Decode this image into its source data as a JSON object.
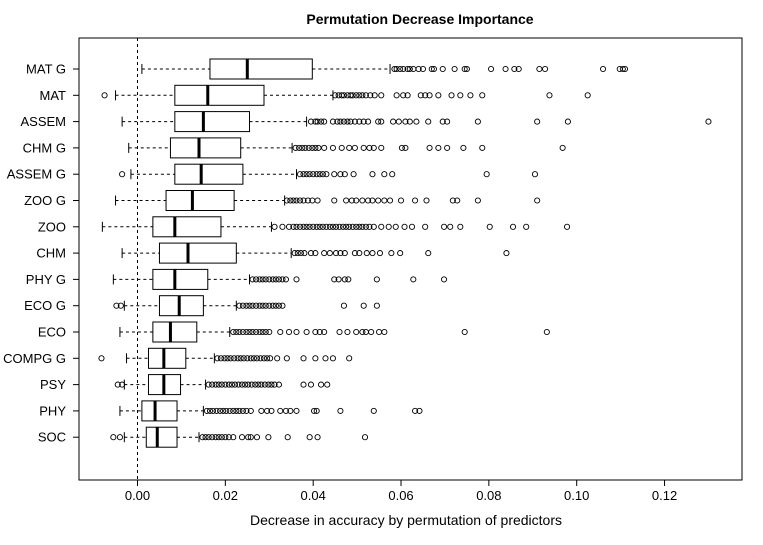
{
  "chart_data": {
    "type": "boxplot",
    "orientation": "horizontal",
    "title": "Permutation Decrease Importance",
    "xlabel": "Decrease in accuracy by permutation of predictors",
    "ylabel": "",
    "xlim": [
      -0.014,
      0.132
    ],
    "x_ticks": [
      "0.00",
      "0.02",
      "0.04",
      "0.06",
      "0.08",
      "0.10",
      "0.12"
    ],
    "x_tick_values": [
      0,
      0.02,
      0.04,
      0.06,
      0.08,
      0.1,
      0.12
    ],
    "reference_line": 0.0,
    "series": [
      {
        "name": "MAT G",
        "whisker_low": 0.001,
        "q1": 0.0165,
        "median": 0.025,
        "q3": 0.0398,
        "whisker_high": 0.0575,
        "outliers": [
          0.0585,
          0.059,
          0.0598,
          0.0605,
          0.0615,
          0.062,
          0.0628,
          0.064,
          0.065,
          0.067,
          0.0675,
          0.0695,
          0.0722,
          0.0745,
          0.075,
          0.0805,
          0.0838,
          0.0858,
          0.0868,
          0.0915,
          0.0928,
          0.106,
          0.1098,
          0.1105,
          0.111
        ]
      },
      {
        "name": "MAT",
        "whisker_low": -0.005,
        "q1": 0.0085,
        "median": 0.016,
        "q3": 0.0288,
        "whisker_high": 0.0445,
        "outliers": [
          -0.0075,
          0.045,
          0.0458,
          0.0465,
          0.047,
          0.0478,
          0.0485,
          0.049,
          0.0498,
          0.0505,
          0.0512,
          0.052,
          0.053,
          0.054,
          0.0555,
          0.059,
          0.0605,
          0.0615,
          0.0645,
          0.0655,
          0.0665,
          0.0685,
          0.0715,
          0.0735,
          0.0758,
          0.0785,
          0.0938,
          0.1025
        ]
      },
      {
        "name": "ASSEM",
        "whisker_low": -0.0035,
        "q1": 0.0085,
        "median": 0.015,
        "q3": 0.0255,
        "whisker_high": 0.0385,
        "outliers": [
          0.0395,
          0.0405,
          0.041,
          0.0418,
          0.0425,
          0.0445,
          0.0455,
          0.0462,
          0.047,
          0.0478,
          0.0485,
          0.0495,
          0.0505,
          0.0515,
          0.0525,
          0.0548,
          0.0555,
          0.0582,
          0.0595,
          0.061,
          0.062,
          0.0635,
          0.0662,
          0.0695,
          0.0705,
          0.0775,
          0.091,
          0.098,
          0.13
        ]
      },
      {
        "name": "CHM G",
        "whisker_low": -0.002,
        "q1": 0.0075,
        "median": 0.014,
        "q3": 0.0235,
        "whisker_high": 0.0352,
        "outliers": [
          0.036,
          0.0368,
          0.0375,
          0.0382,
          0.039,
          0.0398,
          0.0405,
          0.0412,
          0.0425,
          0.0445,
          0.0465,
          0.0482,
          0.0495,
          0.0515,
          0.0528,
          0.0538,
          0.0555,
          0.0602,
          0.061,
          0.0665,
          0.0685,
          0.0705,
          0.0742,
          0.0785,
          0.0968
        ]
      },
      {
        "name": "ASSEM G",
        "whisker_low": -0.0015,
        "q1": 0.0085,
        "median": 0.0145,
        "q3": 0.024,
        "whisker_high": 0.0362,
        "outliers": [
          -0.0035,
          0.037,
          0.0378,
          0.0385,
          0.0392,
          0.04,
          0.0408,
          0.0415,
          0.0422,
          0.043,
          0.0448,
          0.0462,
          0.0472,
          0.0492,
          0.0535,
          0.0562,
          0.058,
          0.0795,
          0.0905
        ]
      },
      {
        "name": "ZOO G",
        "whisker_low": -0.005,
        "q1": 0.0065,
        "median": 0.0125,
        "q3": 0.022,
        "whisker_high": 0.0335,
        "outliers": [
          0.034,
          0.0348,
          0.0355,
          0.0362,
          0.037,
          0.0378,
          0.0388,
          0.0398,
          0.041,
          0.0448,
          0.0475,
          0.0488,
          0.0498,
          0.0512,
          0.0525,
          0.0535,
          0.0548,
          0.0562,
          0.0575,
          0.06,
          0.0632,
          0.0658,
          0.0718,
          0.0728,
          0.0775,
          0.091
        ]
      },
      {
        "name": "ZOO",
        "whisker_low": -0.008,
        "q1": 0.0035,
        "median": 0.0085,
        "q3": 0.019,
        "whisker_high": 0.0305,
        "outliers": [
          0.0312,
          0.033,
          0.0345,
          0.0355,
          0.0362,
          0.037,
          0.0378,
          0.0385,
          0.0392,
          0.04,
          0.0408,
          0.0415,
          0.0422,
          0.043,
          0.0438,
          0.0445,
          0.0452,
          0.046,
          0.0468,
          0.0475,
          0.0482,
          0.049,
          0.0498,
          0.0505,
          0.0512,
          0.052,
          0.0528,
          0.0538,
          0.0555,
          0.0572,
          0.0588,
          0.0608,
          0.0625,
          0.0655,
          0.0698,
          0.0712,
          0.0735,
          0.0802,
          0.0855,
          0.0885,
          0.0978
        ]
      },
      {
        "name": "CHM",
        "whisker_low": -0.0035,
        "q1": 0.005,
        "median": 0.0115,
        "q3": 0.0225,
        "whisker_high": 0.035,
        "outliers": [
          0.0358,
          0.0365,
          0.0372,
          0.038,
          0.0395,
          0.0405,
          0.0425,
          0.0438,
          0.0452,
          0.0462,
          0.0472,
          0.0495,
          0.0505,
          0.0522,
          0.0535,
          0.0552,
          0.0578,
          0.0598,
          0.0662,
          0.084
        ]
      },
      {
        "name": "PHY G",
        "whisker_low": -0.0055,
        "q1": 0.0035,
        "median": 0.0085,
        "q3": 0.016,
        "whisker_high": 0.0255,
        "outliers": [
          0.0262,
          0.027,
          0.0278,
          0.0285,
          0.0292,
          0.03,
          0.0308,
          0.0315,
          0.0322,
          0.033,
          0.0338,
          0.0362,
          0.0448,
          0.0458,
          0.0472,
          0.048,
          0.0545,
          0.0628,
          0.0698
        ]
      },
      {
        "name": "ECO G",
        "whisker_low": -0.003,
        "q1": 0.005,
        "median": 0.0095,
        "q3": 0.015,
        "whisker_high": 0.0225,
        "outliers": [
          -0.0048,
          -0.0038,
          0.0232,
          0.024,
          0.0248,
          0.0255,
          0.0262,
          0.027,
          0.0278,
          0.0285,
          0.0292,
          0.03,
          0.0308,
          0.0315,
          0.0322,
          0.033,
          0.047,
          0.0515,
          0.0545
        ]
      },
      {
        "name": "ECO",
        "whisker_low": -0.004,
        "q1": 0.0035,
        "median": 0.0075,
        "q3": 0.0135,
        "whisker_high": 0.021,
        "outliers": [
          0.0218,
          0.0225,
          0.0232,
          0.024,
          0.0248,
          0.0255,
          0.0262,
          0.027,
          0.0278,
          0.0285,
          0.0292,
          0.03,
          0.0325,
          0.0345,
          0.0362,
          0.0385,
          0.0405,
          0.0415,
          0.0425,
          0.046,
          0.0478,
          0.0498,
          0.0512,
          0.052,
          0.0532,
          0.055,
          0.0562,
          0.0745,
          0.0932
        ]
      },
      {
        "name": "COMPG G",
        "whisker_low": -0.0025,
        "q1": 0.0025,
        "median": 0.006,
        "q3": 0.011,
        "whisker_high": 0.0175,
        "outliers": [
          -0.0082,
          0.0182,
          0.019,
          0.0198,
          0.0205,
          0.0212,
          0.022,
          0.0228,
          0.0235,
          0.0242,
          0.025,
          0.0258,
          0.0265,
          0.0272,
          0.028,
          0.0288,
          0.0295,
          0.0302,
          0.0318,
          0.034,
          0.0378,
          0.0405,
          0.0428,
          0.0445,
          0.0482
        ]
      },
      {
        "name": "PSY",
        "whisker_low": -0.003,
        "q1": 0.0025,
        "median": 0.006,
        "q3": 0.0098,
        "whisker_high": 0.0155,
        "outliers": [
          -0.0045,
          -0.0035,
          0.0162,
          0.017,
          0.0178,
          0.0185,
          0.0192,
          0.02,
          0.0208,
          0.0215,
          0.0222,
          0.023,
          0.0238,
          0.0245,
          0.0252,
          0.026,
          0.0268,
          0.0275,
          0.0282,
          0.029,
          0.0298,
          0.0305,
          0.0312,
          0.0322,
          0.0378,
          0.0395,
          0.0418,
          0.0432
        ]
      },
      {
        "name": "PHY",
        "whisker_low": -0.004,
        "q1": 0.001,
        "median": 0.004,
        "q3": 0.009,
        "whisker_high": 0.015,
        "outliers": [
          0.0158,
          0.0165,
          0.0172,
          0.018,
          0.0188,
          0.0195,
          0.0202,
          0.021,
          0.0218,
          0.0225,
          0.0232,
          0.024,
          0.0248,
          0.0258,
          0.0282,
          0.0295,
          0.0305,
          0.0325,
          0.0338,
          0.0348,
          0.0362,
          0.0402,
          0.0408,
          0.0462,
          0.0538,
          0.0632,
          0.0642
        ]
      },
      {
        "name": "SOC",
        "whisker_low": -0.003,
        "q1": 0.002,
        "median": 0.0045,
        "q3": 0.009,
        "whisker_high": 0.014,
        "outliers": [
          -0.0055,
          -0.004,
          0.0148,
          0.0155,
          0.0162,
          0.017,
          0.0178,
          0.0185,
          0.0192,
          0.02,
          0.0208,
          0.0218,
          0.0238,
          0.0252,
          0.0258,
          0.0272,
          0.0298,
          0.0342,
          0.0392,
          0.041,
          0.0518
        ]
      }
    ]
  }
}
